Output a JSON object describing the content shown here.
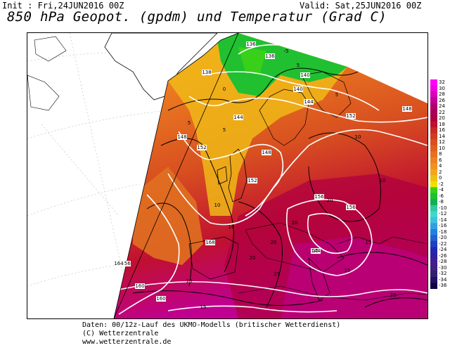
{
  "header": {
    "init": "Init : Fri,24JUN2016 00Z",
    "valid": "Valid: Sat,25JUN2016 00Z",
    "title": "850 hPa Geopot. (gpdm) und Temperatur (Grad C)"
  },
  "legend": {
    "ticks": [
      "32",
      "30",
      "28",
      "26",
      "24",
      "22",
      "20",
      "18",
      "16",
      "14",
      "12",
      "10",
      "8",
      "6",
      "4",
      "2",
      "0",
      "-2",
      "-4",
      "-6",
      "-8",
      "-10",
      "-12",
      "-14",
      "-16",
      "-18",
      "-20",
      "-22",
      "-24",
      "-26",
      "-28",
      "-30",
      "-32",
      "-34",
      "-36"
    ],
    "colors": [
      "#ff00ff",
      "#f000e0",
      "#d800b8",
      "#c00090",
      "#b00070",
      "#a8005a",
      "#b00040",
      "#c01030",
      "#c82828",
      "#d03c20",
      "#d85020",
      "#e06020",
      "#e87020",
      "#ee8020",
      "#f09020",
      "#f0a818",
      "#f0c010",
      "#f0e000",
      "#38d018",
      "#20c030",
      "#10b050",
      "#30c8a0",
      "#40d8d0",
      "#40c0e0",
      "#30a0e0",
      "#2080e0",
      "#2060d0",
      "#2040c0",
      "#2028b0",
      "#3020a0",
      "#402090",
      "#402080",
      "#302070",
      "#201060",
      "#100040"
    ]
  },
  "map": {
    "geopotential_labels": [
      "136",
      "136",
      "138",
      "140",
      "140",
      "144",
      "144",
      "148",
      "148",
      "152",
      "152",
      "152",
      "156",
      "156",
      "156",
      "148",
      "144",
      "160",
      "160",
      "164",
      "168"
    ],
    "temperature_labels": [
      "-5",
      "5",
      "0",
      "5",
      "5",
      "5",
      "10",
      "10",
      "10",
      "10",
      "10",
      "15",
      "15",
      "15",
      "15",
      "20",
      "20",
      "20",
      "20",
      "25",
      "25"
    ]
  },
  "footer": {
    "line1": "Daten: 00/12z-Lauf des UKMO-Modells (britischer Wetterdienst)",
    "line2": "(C) Wetterzentrale",
    "line3": "www.wetterzentrale.de"
  }
}
